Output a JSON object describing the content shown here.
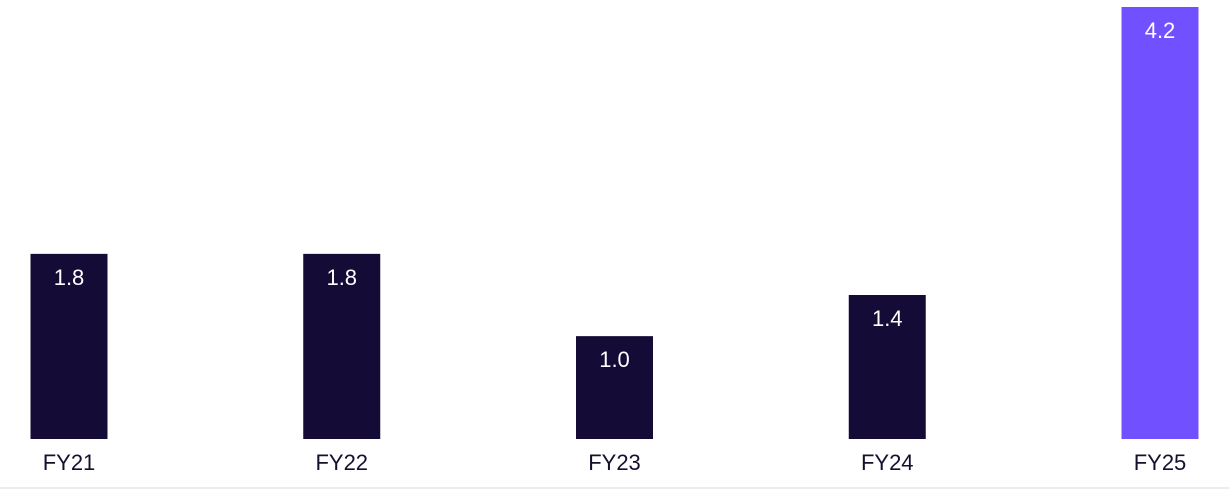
{
  "chart_data": {
    "type": "bar",
    "categories": [
      "FY21",
      "FY22",
      "FY23",
      "FY24",
      "FY25"
    ],
    "values": [
      1.8,
      1.8,
      1.0,
      1.4,
      4.2
    ],
    "value_labels": [
      "1.8",
      "1.8",
      "1.0",
      "1.4",
      "4.2"
    ],
    "ylim": [
      0,
      4.2
    ],
    "grid": false,
    "colors": {
      "default_bar": "#140c36",
      "highlight_bar": "#7050ff",
      "baseline": "#e6e6e6",
      "category_text": "#14112e",
      "value_text": "#ffffff"
    },
    "highlight_index": 4
  }
}
